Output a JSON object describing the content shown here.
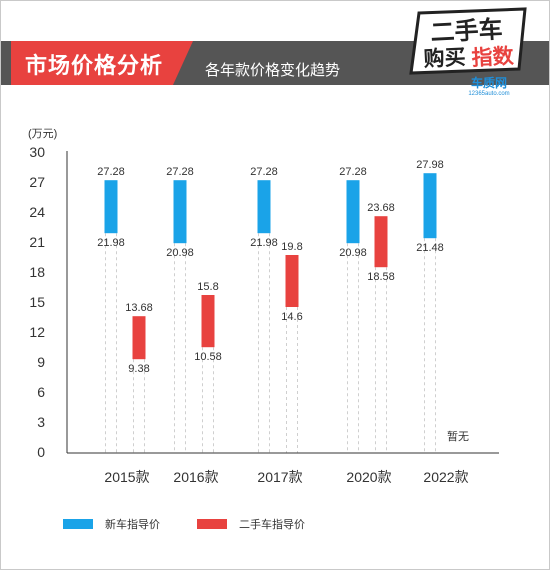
{
  "header": {
    "title": "市场价格分析",
    "subtitle": "各年款价格变化趋势"
  },
  "logo": {
    "line1": "二手车",
    "line2a": "购买",
    "line2b": "指数",
    "brand": "车质网",
    "brand_sub": "12365auto.com",
    "colors": {
      "primary": "#e8423f",
      "ink": "#222222",
      "brand": "#1f8ed8"
    }
  },
  "chart_data": {
    "type": "bar",
    "subtype": "floating-range",
    "unit_label": "(万元)",
    "ylim": [
      0,
      30
    ],
    "yticks": [
      0,
      3,
      6,
      9,
      12,
      15,
      18,
      21,
      24,
      27,
      30
    ],
    "categories": [
      "2015款",
      "2016款",
      "2017款",
      "2020款",
      "2022款"
    ],
    "series": [
      {
        "name": "新车指导价",
        "color": "#1aa3e8",
        "ranges": [
          [
            21.98,
            27.28
          ],
          [
            20.98,
            27.28
          ],
          [
            21.98,
            27.28
          ],
          [
            20.98,
            27.28
          ],
          [
            21.48,
            27.98
          ]
        ],
        "low_labels": [
          "21.98",
          "20.98",
          "21.98",
          "20.98",
          "21.48"
        ],
        "high_labels": [
          "27.28",
          "27.28",
          "27.28",
          "27.28",
          "27.98"
        ]
      },
      {
        "name": "二手车指导价",
        "color": "#e8423f",
        "ranges": [
          [
            9.38,
            13.68
          ],
          [
            10.58,
            15.8
          ],
          [
            14.6,
            19.8
          ],
          [
            18.58,
            23.68
          ],
          null
        ],
        "low_labels": [
          "9.38",
          "10.58",
          "14.6",
          "18.58",
          ""
        ],
        "high_labels": [
          "13.68",
          "15.8",
          "19.8",
          "23.68",
          ""
        ],
        "missing_label": "暂无"
      }
    ],
    "grid": "vertical-dashed",
    "legend_position": "bottom"
  }
}
